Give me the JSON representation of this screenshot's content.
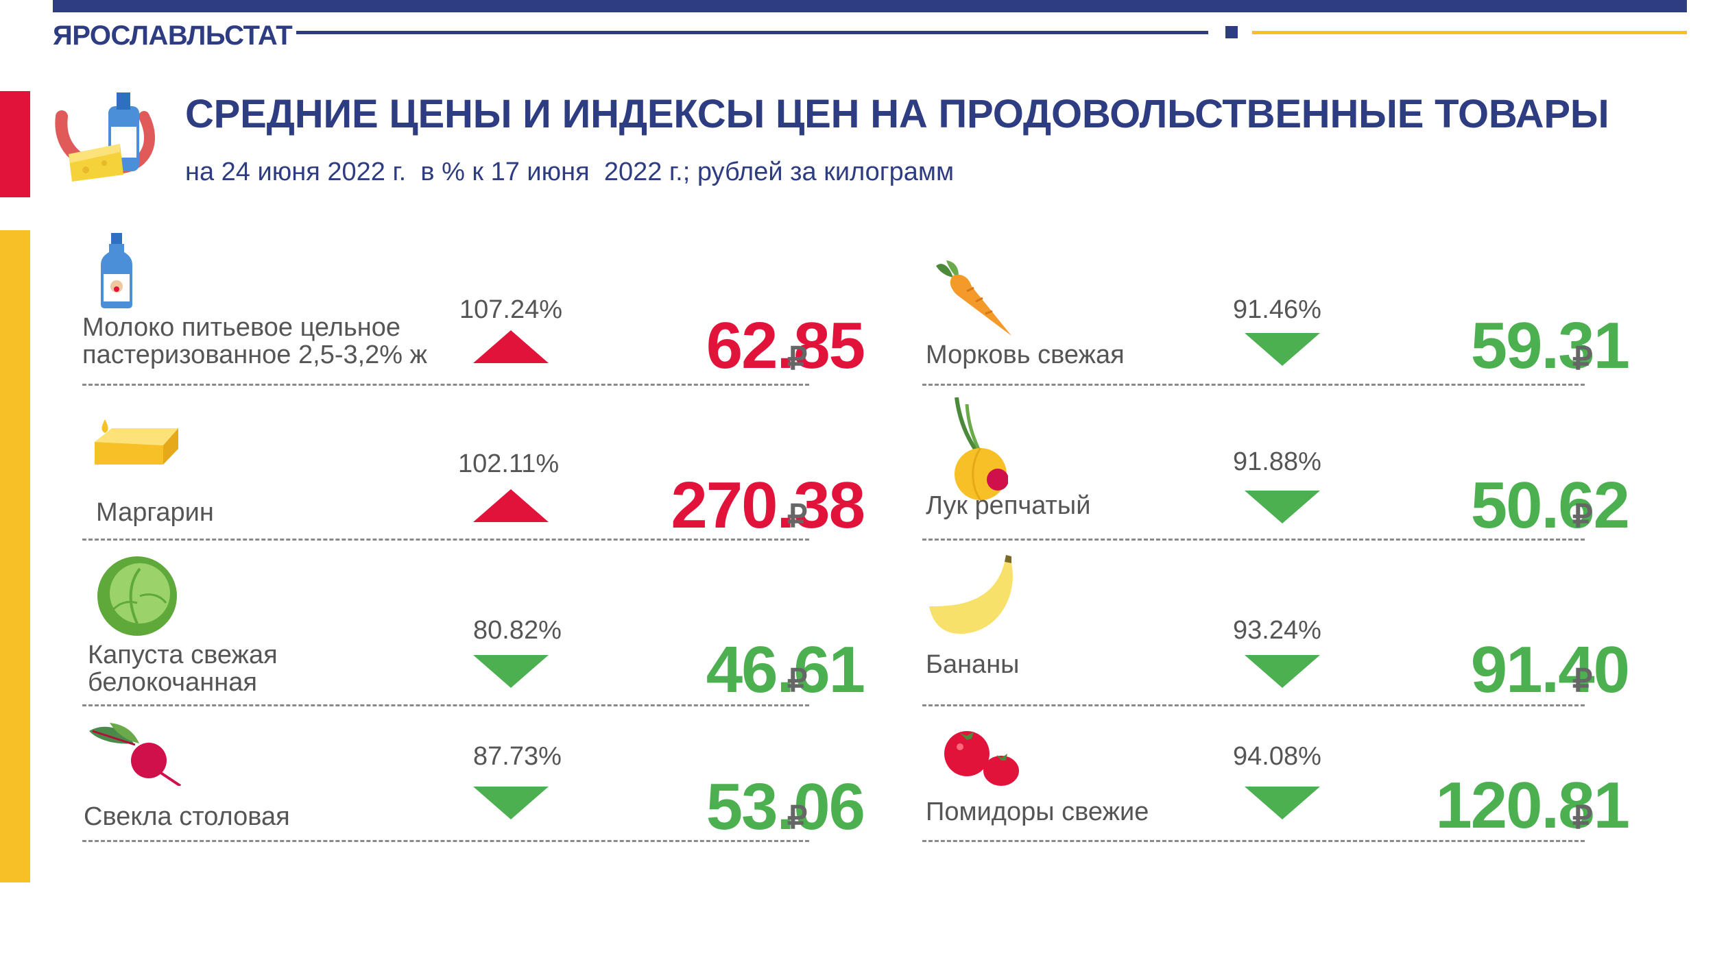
{
  "header": {
    "org": "ЯРОСЛАВЛЬСТАТ",
    "title": "СРЕДНИЕ ЦЕНЫ И ИНДЕКСЫ ЦЕН НА ПРОДОВОЛЬСТВЕННЫЕ ТОВАРЫ",
    "subtitle": "на 24 июня 2022 г.  в % к 17 июня  2022 г.; рублей за килограмм"
  },
  "colors": {
    "up": "#e2133b",
    "down": "#4caf50",
    "brand": "#2e3c82",
    "accent": "#f6c026"
  },
  "currency": "₽",
  "items": [
    {
      "name": "Молоко питьевое цельное пастеризованное 2,5-3,2% ж",
      "index": "107.24%",
      "price": "62.85",
      "trend": "up",
      "icon": "milk-bottle-icon"
    },
    {
      "name": "Морковь свежая",
      "index": "91.46%",
      "price": "59.31",
      "trend": "down",
      "icon": "carrot-icon"
    },
    {
      "name": "Маргарин",
      "index": "102.11%",
      "price": "270.38",
      "trend": "up",
      "icon": "margarine-icon"
    },
    {
      "name": "Лук репчатый",
      "index": "91.88%",
      "price": "50.62",
      "trend": "down",
      "icon": "onion-icon"
    },
    {
      "name": "Капуста свежая белокочанная",
      "index": "80.82%",
      "price": "46.61",
      "trend": "down",
      "icon": "cabbage-icon"
    },
    {
      "name": "Бананы",
      "index": "93.24%",
      "price": "91.40",
      "trend": "down",
      "icon": "banana-icon"
    },
    {
      "name": "Свекла столовая",
      "index": "87.73%",
      "price": "53.06",
      "trend": "down",
      "icon": "beet-icon"
    },
    {
      "name": "Помидоры свежие",
      "index": "94.08%",
      "price": "120.81",
      "trend": "down",
      "icon": "tomato-icon"
    }
  ]
}
